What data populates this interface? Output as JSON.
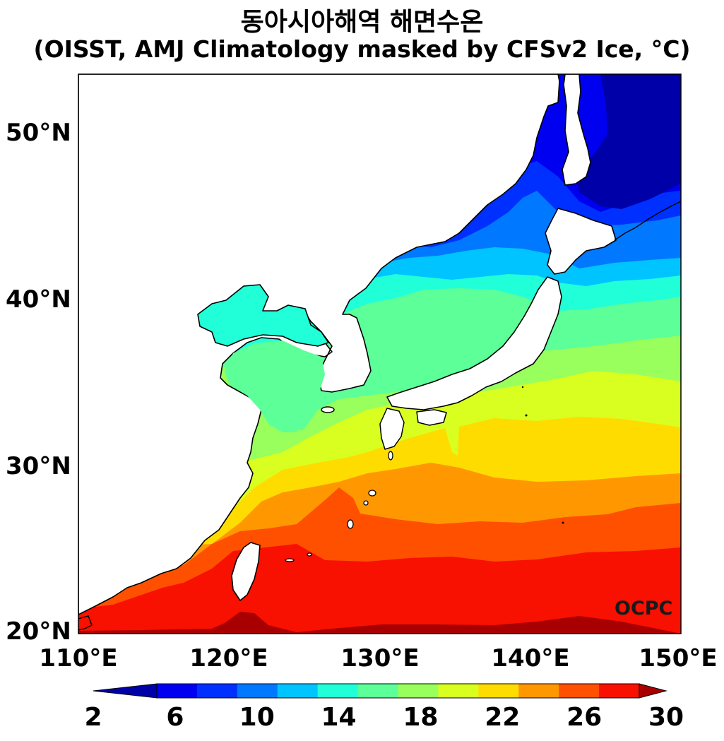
{
  "title": {
    "line1": "동아시아해역 해면수온",
    "line2": "(OISST, AMJ Climatology masked by CFSv2 Ice, °C)"
  },
  "lat_labels": [
    "50°N",
    "40°N",
    "30°N",
    "20°N"
  ],
  "lon_labels": [
    "110°E",
    "120°E",
    "130°E",
    "140°E",
    "150°E"
  ],
  "colorbar": {
    "labels": [
      "2",
      "6",
      "10",
      "14",
      "18",
      "22",
      "26",
      "30"
    ],
    "levels": [
      2,
      4,
      6,
      8,
      10,
      12,
      14,
      16,
      18,
      20,
      22,
      24,
      26,
      28,
      30
    ],
    "colors": [
      "#0000a8",
      "#0000f0",
      "#0030ff",
      "#0078ff",
      "#00c4ff",
      "#20ffd8",
      "#5cff98",
      "#98ff5c",
      "#d8ff20",
      "#ffdc00",
      "#ff9800",
      "#ff5000",
      "#f81000",
      "#a80000"
    ],
    "extend": "both"
  },
  "map": {
    "lon_range": [
      110,
      150
    ],
    "lat_range": [
      20,
      53.5
    ],
    "variable": "sea surface temperature",
    "units": "°C"
  },
  "watermark": "OCPC"
}
